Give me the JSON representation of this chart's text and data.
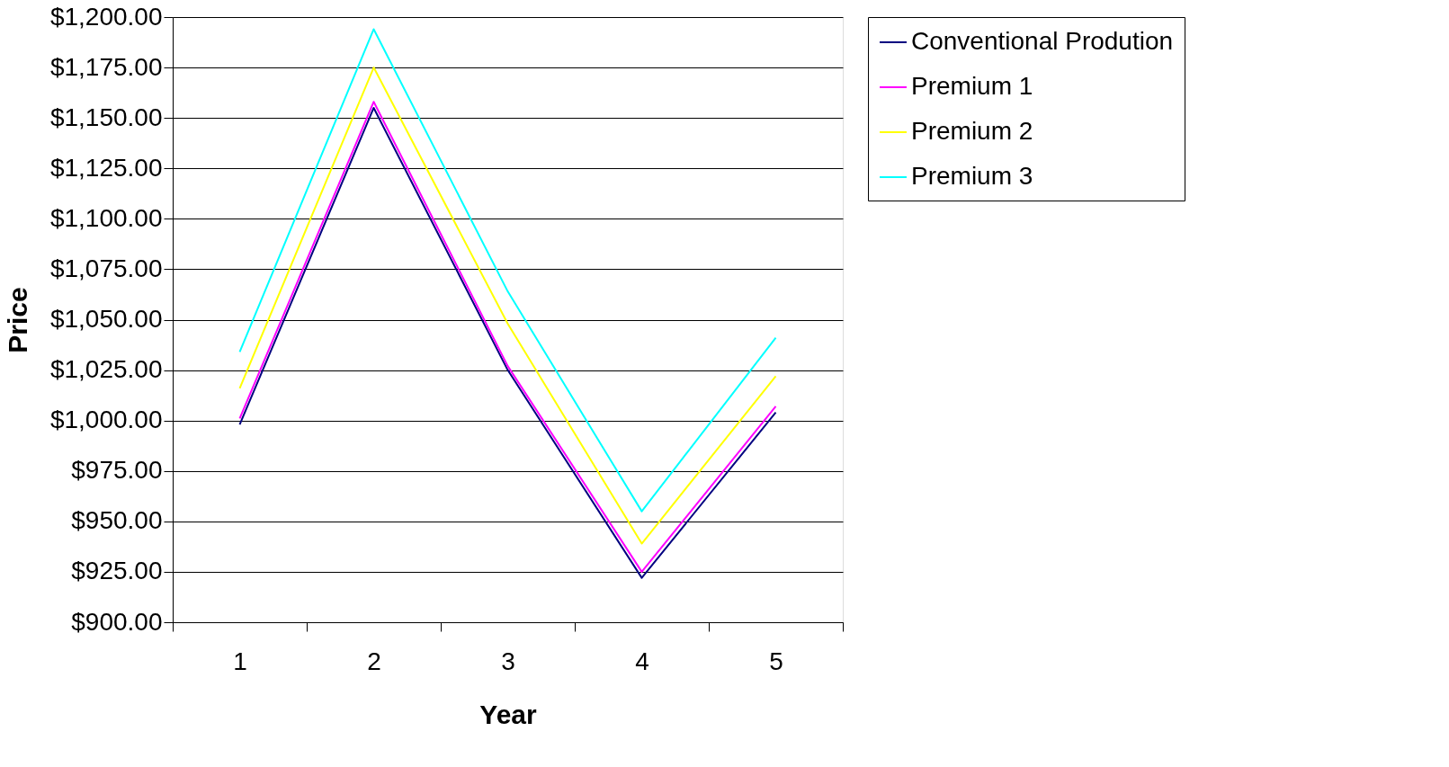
{
  "chart_data": {
    "type": "line",
    "xlabel": "Year",
    "ylabel": "Price",
    "categories": [
      "1",
      "2",
      "3",
      "4",
      "5"
    ],
    "series": [
      {
        "name": "Conventional Prodution",
        "color": "#000080",
        "values": [
          998,
          1155,
          1025,
          922,
          1004
        ]
      },
      {
        "name": "Premium 1",
        "color": "#ff00ff",
        "values": [
          1001,
          1158,
          1027,
          925,
          1007
        ]
      },
      {
        "name": "Premium 2",
        "color": "#ffff00",
        "values": [
          1016,
          1175,
          1048,
          939,
          1022
        ]
      },
      {
        "name": "Premium 3",
        "color": "#00ffff",
        "values": [
          1034,
          1194,
          1064,
          955,
          1041
        ]
      }
    ],
    "ylim": [
      900,
      1200
    ],
    "yticks": [
      {
        "value": 900,
        "label": "$900.00"
      },
      {
        "value": 925,
        "label": "$925.00"
      },
      {
        "value": 950,
        "label": "$950.00"
      },
      {
        "value": 975,
        "label": "$975.00"
      },
      {
        "value": 1000,
        "label": "$1,000.00"
      },
      {
        "value": 1025,
        "label": "$1,025.00"
      },
      {
        "value": 1050,
        "label": "$1,050.00"
      },
      {
        "value": 1075,
        "label": "$1,075.00"
      },
      {
        "value": 1100,
        "label": "$1,100.00"
      },
      {
        "value": 1125,
        "label": "$1,125.00"
      },
      {
        "value": 1150,
        "label": "$1,150.00"
      },
      {
        "value": 1175,
        "label": "$1,175.00"
      },
      {
        "value": 1200,
        "label": "$1,200.00"
      }
    ],
    "grid": "y",
    "legend": "right",
    "marker": "none",
    "line_style": "solid"
  }
}
